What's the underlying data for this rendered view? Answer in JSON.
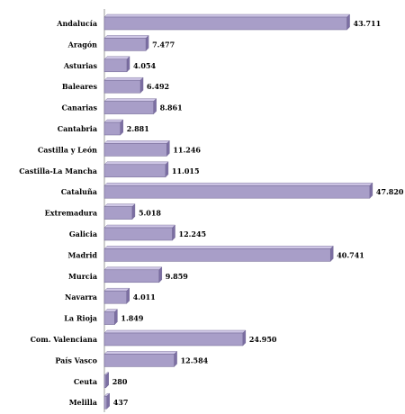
{
  "chart_data": {
    "type": "bar",
    "orientation": "horizontal",
    "categories": [
      "Andalucía",
      "Aragón",
      "Asturias",
      "Baleares",
      "Canarias",
      "Cantabria",
      "Castilla y León",
      "Castilla-La Mancha",
      "Cataluña",
      "Extremadura",
      "Galicia",
      "Madrid",
      "Murcia",
      "Navarra",
      "La Rioja",
      "Com. Valenciana",
      "País Vasco",
      "Ceuta",
      "Melilla"
    ],
    "values": [
      43711,
      7477,
      4054,
      6492,
      8861,
      2881,
      11246,
      11015,
      47820,
      5018,
      12245,
      40741,
      9859,
      4011,
      1849,
      24950,
      12584,
      280,
      437
    ],
    "value_labels": [
      "43.711",
      "7.477",
      "4.054",
      "6.492",
      "8.861",
      "2.881",
      "11.246",
      "11.015",
      "47.820",
      "5.018",
      "12.245",
      "40.741",
      "9.859",
      "4.011",
      "1.849",
      "24.950",
      "12.584",
      "280",
      "437"
    ],
    "xlim": [
      0,
      48000
    ],
    "grid": false,
    "legend": "none",
    "bar_color": "#a89ec8",
    "bar_side_color": "#7c6fa3",
    "bar_top_color": "#cfc7e6"
  }
}
